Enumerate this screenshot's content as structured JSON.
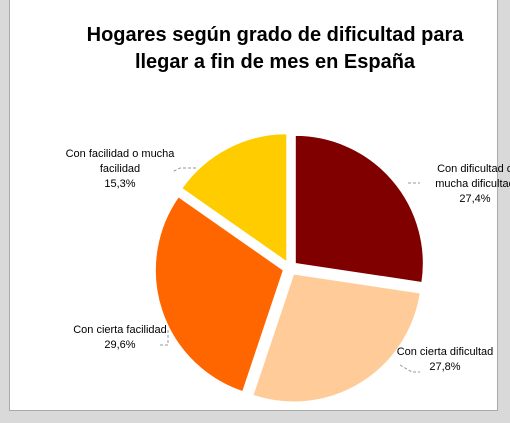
{
  "chart_data": {
    "type": "pie",
    "title": "Hogares según grado de dificultad para llegar a fin de mes en España",
    "categories": [
      "Con dificultad o mucha dificultad",
      "Con cierta dificultad",
      "Con cierta facilidad",
      "Con facilidad o mucha facilidad"
    ],
    "values": [
      27.4,
      27.8,
      29.6,
      15.3
    ],
    "value_labels": [
      "27,4%",
      "27,8%",
      "29,6%",
      "15,3%"
    ],
    "colors": [
      "#800000",
      "#ffcc99",
      "#ff6600",
      "#ffcc00"
    ]
  }
}
